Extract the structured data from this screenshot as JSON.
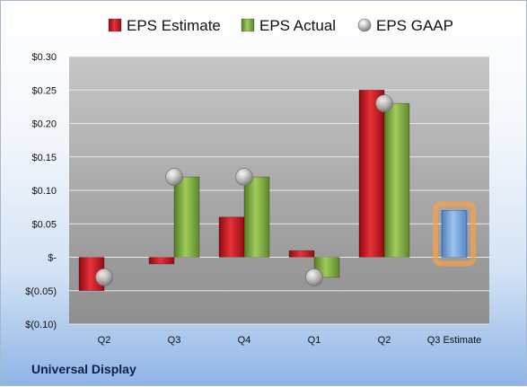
{
  "chart_data": {
    "type": "bar",
    "categories": [
      "Q2",
      "Q3",
      "Q4",
      "Q1",
      "Q2",
      "Q3 Estimate"
    ],
    "series": [
      {
        "name": "EPS Estimate",
        "color": "#c8141c",
        "values": [
          -0.05,
          -0.01,
          0.06,
          0.01,
          0.25,
          null
        ]
      },
      {
        "name": "EPS Actual",
        "color": "#82b440",
        "values": [
          null,
          0.12,
          0.12,
          -0.03,
          0.23,
          null
        ]
      },
      {
        "name": "EPS GAAP",
        "color": "#b4b4b4",
        "marker": "circle",
        "values": [
          -0.03,
          0.12,
          0.12,
          -0.03,
          0.23,
          null
        ]
      },
      {
        "name": "",
        "color": "#6fa0dc",
        "highlight": "#f5a04a",
        "values": [
          null,
          null,
          null,
          null,
          null,
          0.07
        ]
      }
    ],
    "yticks": [
      0.3,
      0.25,
      0.2,
      0.15,
      0.1,
      0.05,
      0,
      -0.05,
      -0.1
    ],
    "ytick_labels": [
      "$0.30",
      "$0.25",
      "$0.20",
      "$0.15",
      "$0.10",
      "$0.05",
      "$-",
      "$(0.05)",
      "$(0.10)"
    ],
    "ylim": [
      -0.1,
      0.3
    ],
    "legend_position": "top",
    "grid": true
  },
  "footer": {
    "company": "Universal Display"
  }
}
